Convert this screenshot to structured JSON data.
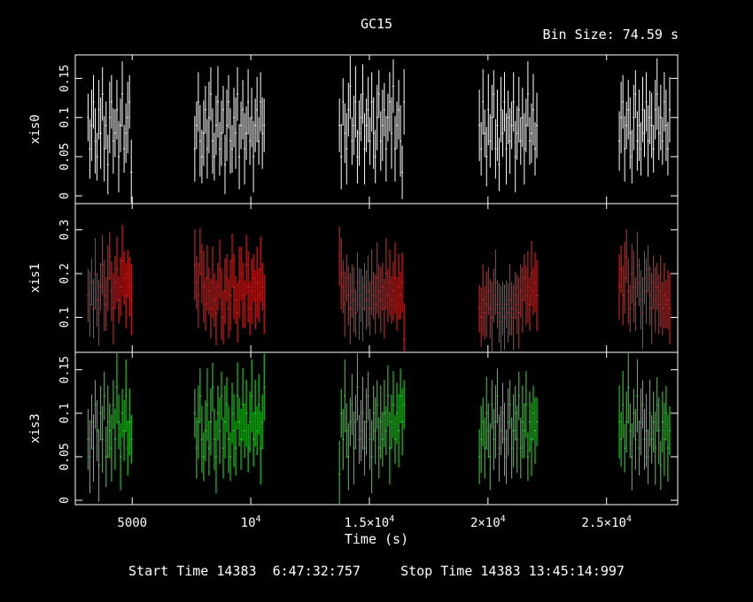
{
  "title": "GC15",
  "bin_size_label": "Bin Size: 74.59 s",
  "footer_text": "Start Time 14383  6:47:32:757     Stop Time 14383 13:45:14:997",
  "chart_data": {
    "type": "scatter",
    "xlabel": "Time (s)",
    "xlim": [
      2600,
      28000
    ],
    "x_ticks": [
      {
        "value": 5000,
        "label": "5000"
      },
      {
        "value": 10000,
        "label": "10",
        "sup": "4"
      },
      {
        "value": 15000,
        "label": "1.5×10",
        "sup": "4"
      },
      {
        "value": 20000,
        "label": "2×10",
        "sup": "4"
      },
      {
        "value": 25000,
        "label": "2.5×10",
        "sup": "4"
      }
    ],
    "segments": [
      [
        3100,
        5000
      ],
      [
        7600,
        10600
      ],
      [
        13700,
        16500
      ],
      [
        19600,
        22100
      ],
      [
        25500,
        27700
      ]
    ],
    "series": [
      {
        "name": "xis0",
        "color": "#ffffff",
        "ylim": [
          -0.01,
          0.18
        ],
        "yticks": [
          {
            "value": 0,
            "label": "0"
          },
          {
            "value": 0.05,
            "label": "0.05"
          },
          {
            "value": 0.1,
            "label": "0.1"
          },
          {
            "value": 0.15,
            "label": "0.15"
          }
        ],
        "segment_values": [
          [
            0.1,
            0.06,
            0.09,
            0.12,
            0.07,
            0.05,
            0.11,
            0.08,
            0.13,
            0.06,
            0.09,
            0.04,
            0.1,
            0.12,
            0.07,
            0.08,
            0.11,
            0.05,
            0.09,
            0.13,
            0.06,
            0.08,
            0.1,
            0.12,
            0.03
          ],
          [
            0.06,
            0.09,
            0.12,
            0.07,
            0.05,
            0.08,
            0.11,
            0.06,
            0.1,
            0.13,
            0.07,
            0.05,
            0.09,
            0.12,
            0.06,
            0.08,
            0.11,
            0.04,
            0.09,
            0.12,
            0.07,
            0.06,
            0.1,
            0.08,
            0.13,
            0.05,
            0.09,
            0.11,
            0.06,
            0.08,
            0.12,
            0.07,
            0.1,
            0.05,
            0.09,
            0.11,
            0.07,
            0.12,
            0.08,
            0.09
          ],
          [
            0.09,
            0.05,
            0.12,
            0.08,
            0.06,
            0.11,
            0.14,
            0.07,
            0.09,
            0.12,
            0.05,
            0.08,
            0.1,
            0.13,
            0.06,
            0.09,
            0.11,
            0.07,
            0.12,
            0.08,
            0.05,
            0.1,
            0.13,
            0.07,
            0.09,
            0.11,
            0.06,
            0.1,
            0.12,
            0.08,
            0.14,
            0.06,
            0.09,
            0.11,
            0.07,
            0.03,
            0.12
          ],
          [
            0.09,
            0.06,
            0.12,
            0.08,
            0.05,
            0.11,
            0.07,
            0.1,
            0.13,
            0.06,
            0.09,
            0.04,
            0.11,
            0.08,
            0.12,
            0.06,
            0.1,
            0.07,
            0.09,
            0.12,
            0.05,
            0.08,
            0.11,
            0.07,
            0.1,
            0.06,
            0.09,
            0.13,
            0.07,
            0.08,
            0.11,
            0.06,
            0.09
          ],
          [
            0.07,
            0.1,
            0.12,
            0.06,
            0.09,
            0.11,
            0.08,
            0.05,
            0.1,
            0.13,
            0.07,
            0.09,
            0.06,
            0.11,
            0.08,
            0.12,
            0.07,
            0.1,
            0.09,
            0.06,
            0.11,
            0.13,
            0.08,
            0.1,
            0.07,
            0.12,
            0.09,
            0.06,
            0.11
          ]
        ]
      },
      {
        "name": "xis1",
        "color": "#ff2020",
        "ylim": [
          0.02,
          0.36
        ],
        "yticks": [
          {
            "value": 0.1,
            "label": "0.1"
          },
          {
            "value": 0.2,
            "label": "0.2"
          },
          {
            "value": 0.3,
            "label": "0.3"
          }
        ],
        "segment_values": [
          [
            0.15,
            0.13,
            0.18,
            0.12,
            0.2,
            0.14,
            0.11,
            0.17,
            0.22,
            0.15,
            0.13,
            0.19,
            0.24,
            0.16,
            0.12,
            0.18,
            0.21,
            0.14,
            0.17,
            0.23,
            0.19,
            0.15,
            0.2,
            0.17,
            0.14
          ],
          [
            0.22,
            0.18,
            0.15,
            0.25,
            0.2,
            0.17,
            0.13,
            0.19,
            0.16,
            0.12,
            0.18,
            0.14,
            0.11,
            0.17,
            0.21,
            0.13,
            0.1,
            0.16,
            0.19,
            0.12,
            0.15,
            0.23,
            0.17,
            0.14,
            0.11,
            0.18,
            0.2,
            0.15,
            0.13,
            0.22,
            0.17,
            0.12,
            0.16,
            0.19,
            0.14,
            0.18,
            0.15,
            0.21,
            0.17,
            0.13
          ],
          [
            0.24,
            0.2,
            0.17,
            0.13,
            0.19,
            0.15,
            0.12,
            0.16,
            0.14,
            0.11,
            0.18,
            0.13,
            0.15,
            0.12,
            0.17,
            0.14,
            0.16,
            0.12,
            0.18,
            0.15,
            0.13,
            0.19,
            0.16,
            0.14,
            0.17,
            0.12,
            0.2,
            0.15,
            0.18,
            0.14,
            0.16,
            0.19,
            0.13,
            0.17,
            0.15,
            0.18,
            0.05
          ],
          [
            0.12,
            0.1,
            0.14,
            0.11,
            0.13,
            0.16,
            0.12,
            0.1,
            0.15,
            0.18,
            0.13,
            0.11,
            0.09,
            0.12,
            0.1,
            0.13,
            0.11,
            0.14,
            0.12,
            0.1,
            0.15,
            0.13,
            0.11,
            0.16,
            0.14,
            0.19,
            0.15,
            0.17,
            0.13,
            0.2,
            0.16,
            0.18,
            0.15
          ],
          [
            0.17,
            0.21,
            0.15,
            0.19,
            0.24,
            0.16,
            0.12,
            0.2,
            0.17,
            0.13,
            0.22,
            0.18,
            0.14,
            0.11,
            0.19,
            0.16,
            0.21,
            0.15,
            0.12,
            0.18,
            0.14,
            0.17,
            0.13,
            0.16,
            0.12,
            0.15,
            0.13,
            0.14,
            0.12
          ]
        ]
      },
      {
        "name": "xis3",
        "color": "#20ee20",
        "ylim": [
          -0.005,
          0.17
        ],
        "yticks": [
          {
            "value": 0,
            "label": "0"
          },
          {
            "value": 0.05,
            "label": "0.05"
          },
          {
            "value": 0.1,
            "label": "0.1"
          },
          {
            "value": 0.15,
            "label": "0.15"
          }
        ],
        "segment_values": [
          [
            0.07,
            0.05,
            0.09,
            0.06,
            0.11,
            0.08,
            0.04,
            0.1,
            0.07,
            0.12,
            0.05,
            0.09,
            0.08,
            0.06,
            0.11,
            0.07,
            0.13,
            0.09,
            0.05,
            0.1,
            0.08,
            0.12,
            0.06,
            0.09,
            0.07
          ],
          [
            0.1,
            0.06,
            0.09,
            0.12,
            0.07,
            0.05,
            0.08,
            0.11,
            0.06,
            0.09,
            0.13,
            0.07,
            0.05,
            0.1,
            0.08,
            0.12,
            0.06,
            0.09,
            0.11,
            0.07,
            0.05,
            0.1,
            0.08,
            0.06,
            0.12,
            0.09,
            0.07,
            0.11,
            0.08,
            0.1,
            0.06,
            0.09,
            0.12,
            0.07,
            0.1,
            0.08,
            0.11,
            0.06,
            0.09,
            0.13
          ],
          [
            0.03,
            0.1,
            0.07,
            0.12,
            0.08,
            0.05,
            0.09,
            0.11,
            0.06,
            0.09,
            0.13,
            0.07,
            0.08,
            0.1,
            0.06,
            0.09,
            0.12,
            0.07,
            0.05,
            0.1,
            0.08,
            0.11,
            0.06,
            0.09,
            0.07,
            0.1,
            0.08,
            0.12,
            0.06,
            0.09,
            0.11,
            0.07,
            0.1,
            0.08,
            0.12,
            0.09,
            0.11
          ],
          [
            0.05,
            0.07,
            0.09,
            0.06,
            0.1,
            0.08,
            0.05,
            0.11,
            0.07,
            0.09,
            0.12,
            0.06,
            0.08,
            0.1,
            0.07,
            0.05,
            0.09,
            0.11,
            0.06,
            0.08,
            0.1,
            0.07,
            0.12,
            0.06,
            0.09,
            0.08,
            0.11,
            0.05,
            0.09,
            0.07,
            0.1,
            0.08,
            0.09
          ],
          [
            0.09,
            0.07,
            0.11,
            0.06,
            0.09,
            0.13,
            0.08,
            0.05,
            0.1,
            0.07,
            0.12,
            0.06,
            0.09,
            0.11,
            0.07,
            0.08,
            0.05,
            0.1,
            0.07,
            0.09,
            0.06,
            0.11,
            0.08,
            0.04,
            0.09,
            0.07,
            0.1,
            0.06,
            0.08
          ]
        ]
      }
    ]
  }
}
